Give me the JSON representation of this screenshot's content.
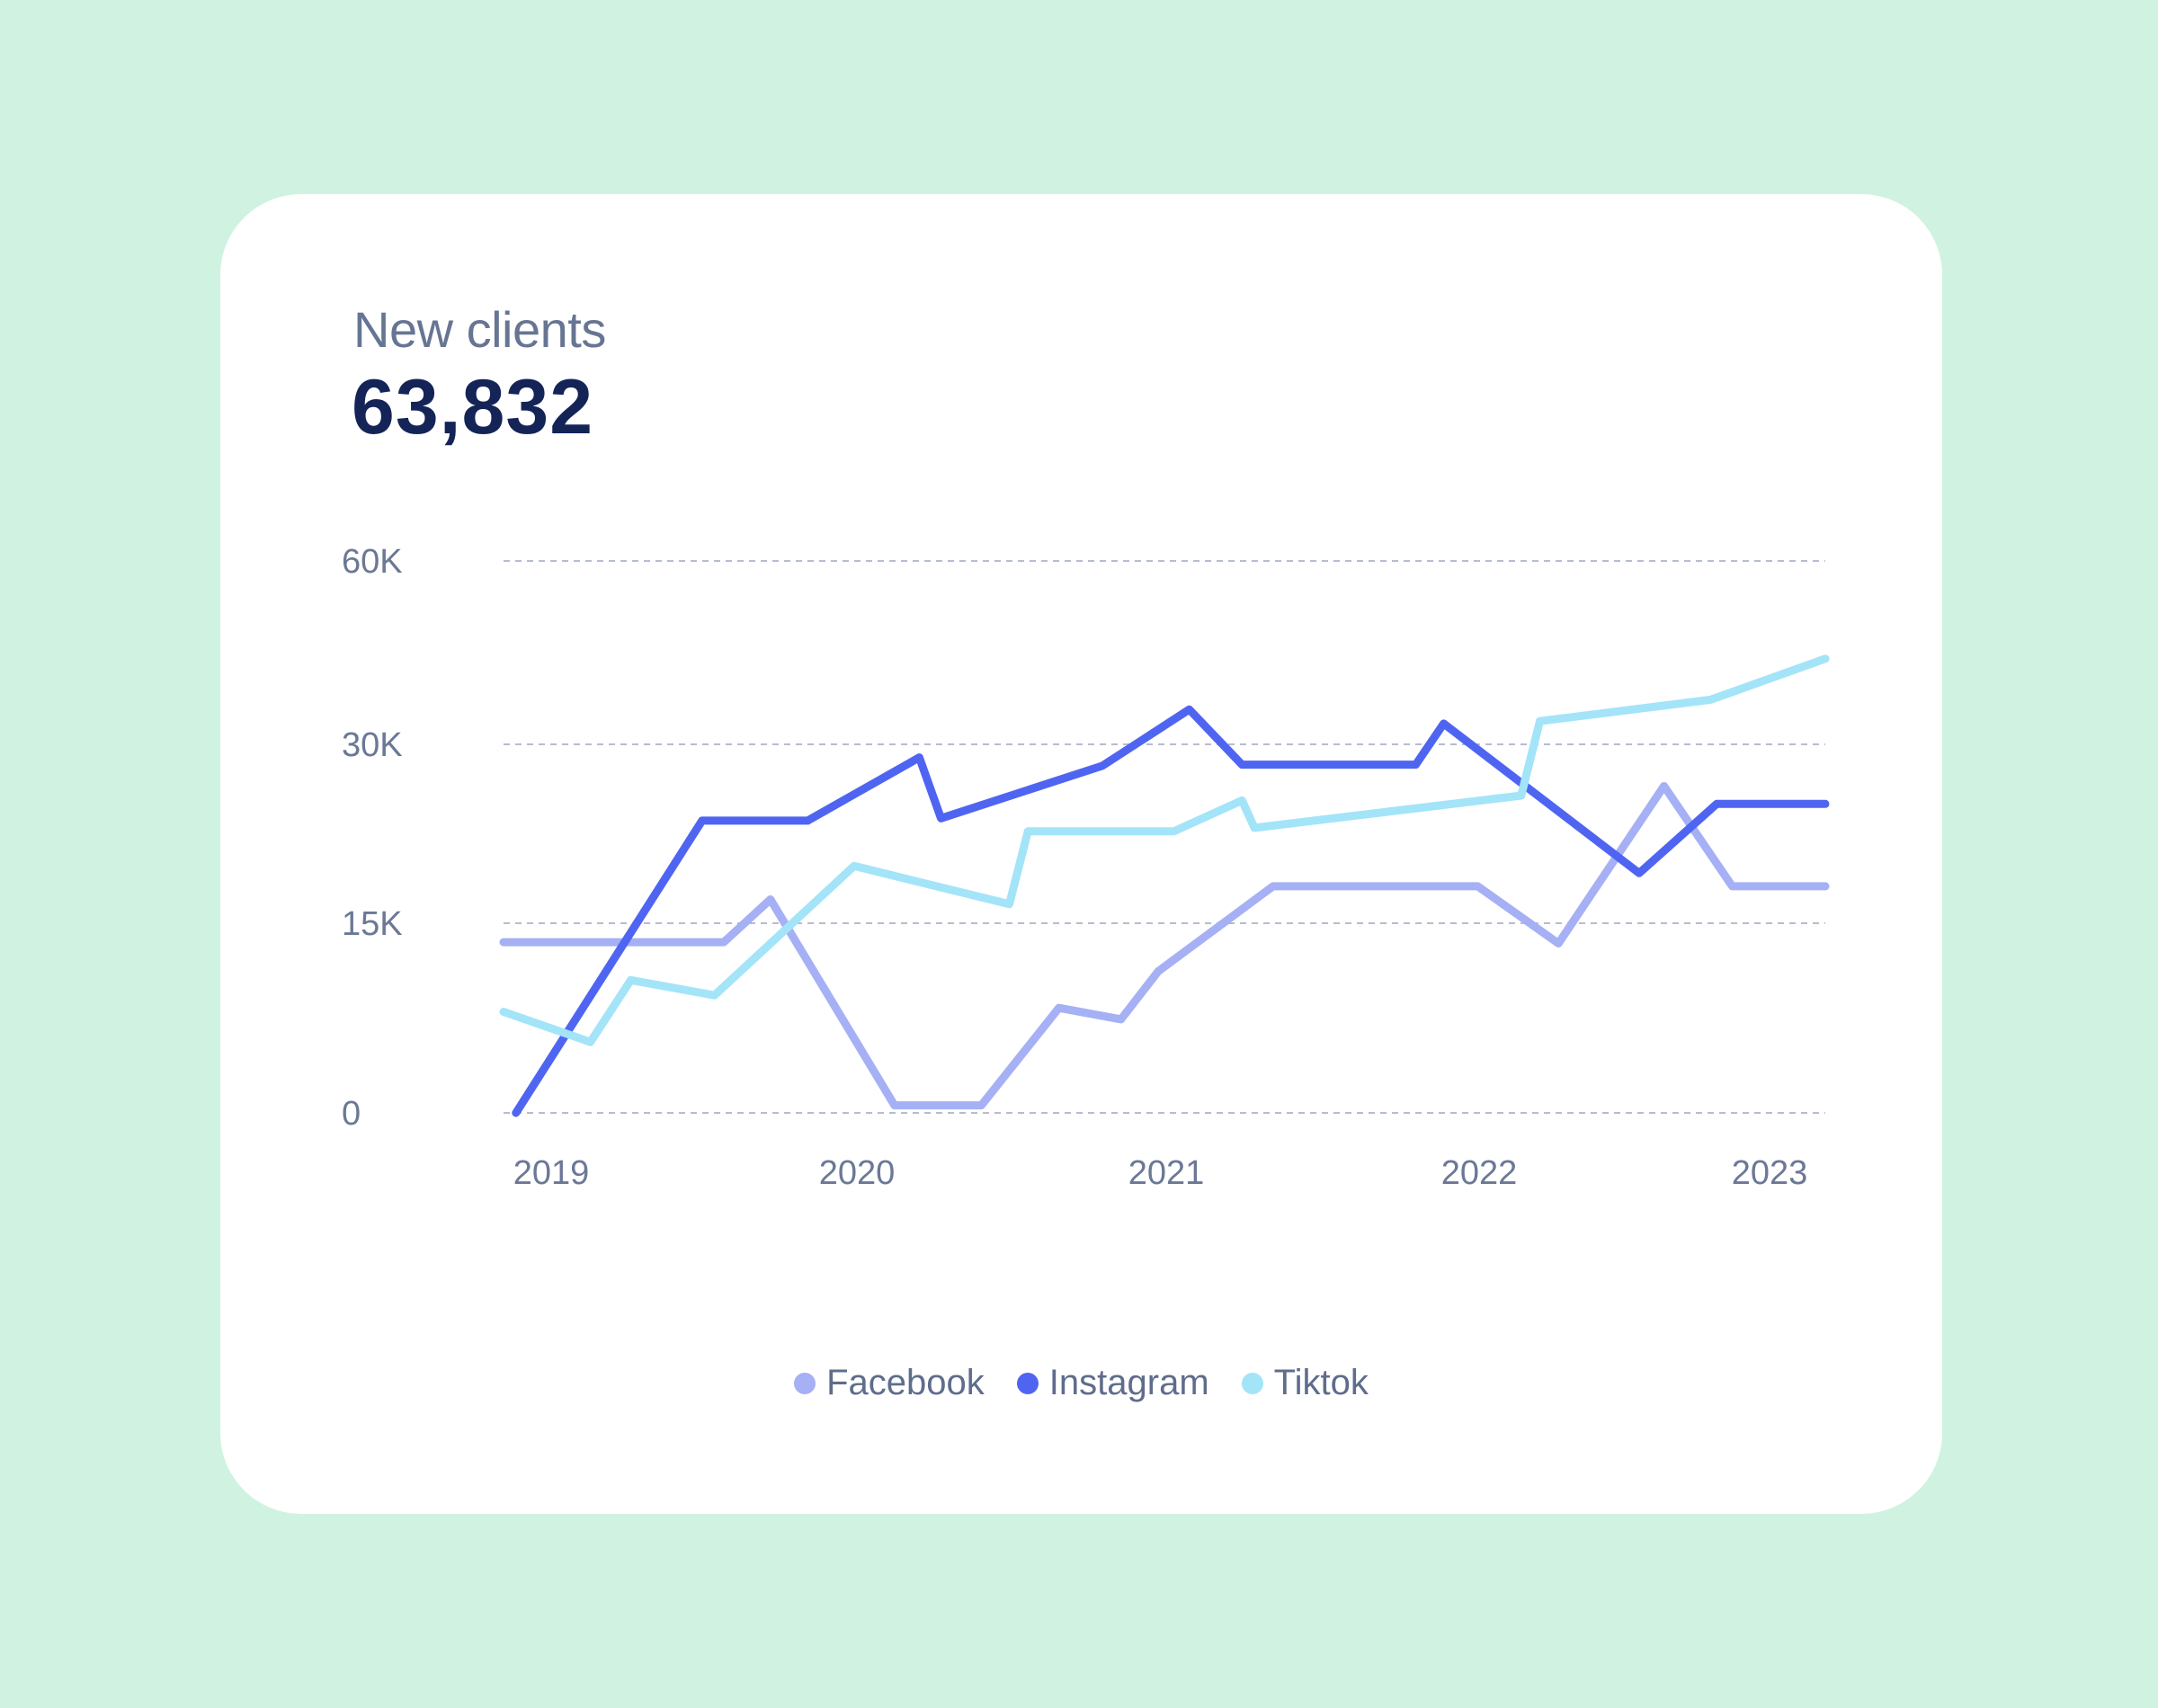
{
  "card": {
    "label": "New clients",
    "value": "63,832"
  },
  "chart_data": {
    "type": "line",
    "title": "",
    "xlabel": "",
    "ylabel": "",
    "x_ticks": [
      "2019",
      "2020",
      "2021",
      "2022",
      "2023"
    ],
    "y_ticks": [
      {
        "value": 0,
        "label": "0"
      },
      {
        "value": 15000,
        "label": "15K"
      },
      {
        "value": 30000,
        "label": "30K"
      },
      {
        "value": 60000,
        "label": "60K"
      }
    ],
    "xlim": [
      2019,
      2023.2
    ],
    "grid": true,
    "legend_position": "bottom-center",
    "series": [
      {
        "name": "Facebook",
        "color": "#a5b0f5",
        "points": [
          [
            2018.94,
            13500
          ],
          [
            2019.65,
            13500
          ],
          [
            2019.8,
            17000
          ],
          [
            2020.2,
            600
          ],
          [
            2020.48,
            600
          ],
          [
            2020.73,
            8300
          ],
          [
            2020.93,
            7400
          ],
          [
            2021.05,
            11200
          ],
          [
            2021.42,
            18100
          ],
          [
            2022.08,
            18100
          ],
          [
            2022.34,
            13400
          ],
          [
            2022.68,
            26500
          ],
          [
            2022.9,
            18100
          ],
          [
            2023.2,
            18100
          ]
        ]
      },
      {
        "name": "Instagram",
        "color": "#4f65f2",
        "points": [
          [
            2018.98,
            0
          ],
          [
            2019.58,
            23600
          ],
          [
            2019.92,
            23600
          ],
          [
            2020.28,
            28900
          ],
          [
            2020.35,
            23800
          ],
          [
            2020.87,
            28200
          ],
          [
            2021.15,
            35700
          ],
          [
            2021.32,
            28300
          ],
          [
            2021.88,
            28300
          ],
          [
            2021.97,
            33400
          ],
          [
            2022.6,
            19200
          ],
          [
            2022.85,
            25000
          ],
          [
            2023.2,
            25000
          ]
        ]
      },
      {
        "name": "Tiktok",
        "color": "#a3e4f8",
        "points": [
          [
            2018.94,
            8000
          ],
          [
            2019.22,
            5600
          ],
          [
            2019.35,
            10500
          ],
          [
            2019.62,
            9300
          ],
          [
            2020.07,
            19800
          ],
          [
            2020.57,
            16600
          ],
          [
            2020.63,
            22700
          ],
          [
            2021.1,
            22700
          ],
          [
            2021.32,
            25300
          ],
          [
            2021.36,
            23000
          ],
          [
            2022.22,
            25700
          ],
          [
            2022.28,
            33800
          ],
          [
            2022.83,
            37300
          ],
          [
            2023.2,
            44000
          ]
        ]
      }
    ]
  }
}
